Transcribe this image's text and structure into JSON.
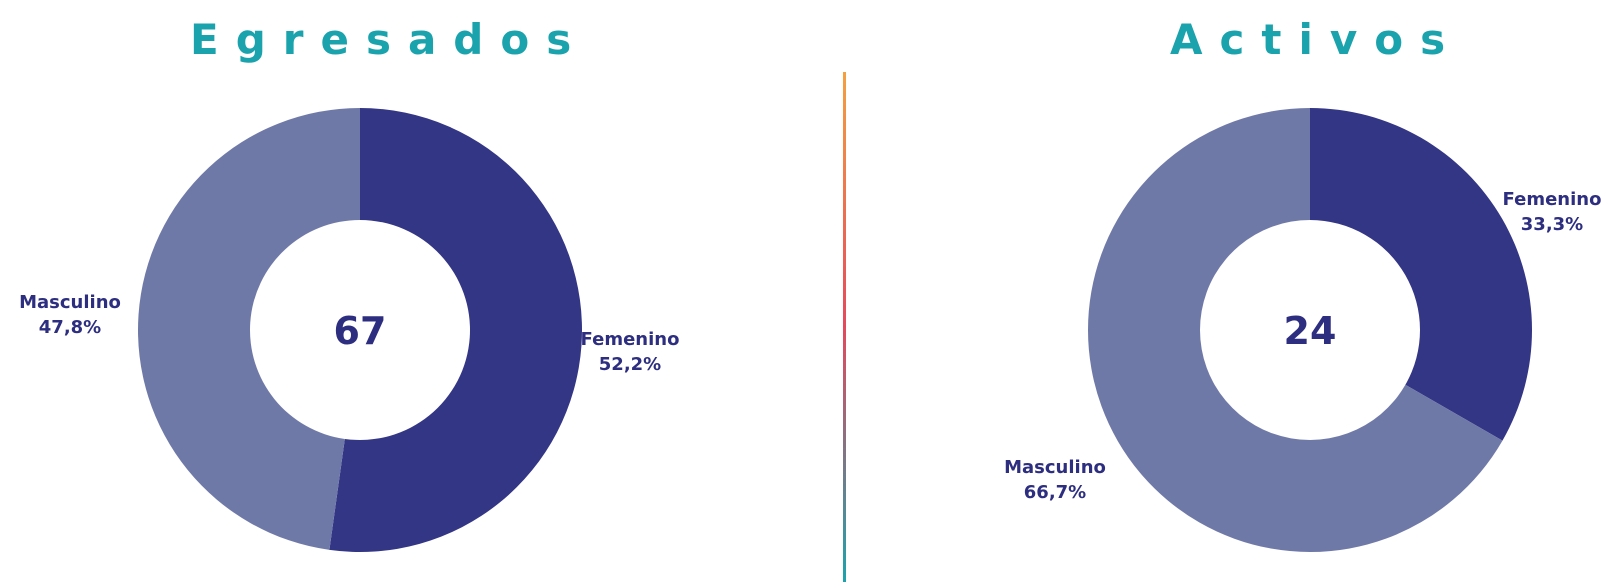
{
  "colors": {
    "title": "#1ba3ad",
    "femenino": "#333585",
    "masculino": "#6f79a7",
    "label": "#2d2e80",
    "divider_top": "#f4a040",
    "divider_mid": "#e5485c",
    "divider_bottom": "#1ba3ad"
  },
  "chart_data": [
    {
      "type": "pie",
      "title": "Egresados",
      "total": "67",
      "slices": [
        {
          "label": "Femenino",
          "value": 52.2,
          "display": "52,2%",
          "color": "#333585"
        },
        {
          "label": "Masculino",
          "value": 47.8,
          "display": "47,8%",
          "color": "#6f79a7"
        }
      ]
    },
    {
      "type": "pie",
      "title": "Activos",
      "total": "24",
      "slices": [
        {
          "label": "Femenino",
          "value": 33.3,
          "display": "33,3%",
          "color": "#333585"
        },
        {
          "label": "Masculino",
          "value": 66.7,
          "display": "66,7%",
          "color": "#6f79a7"
        }
      ]
    }
  ]
}
